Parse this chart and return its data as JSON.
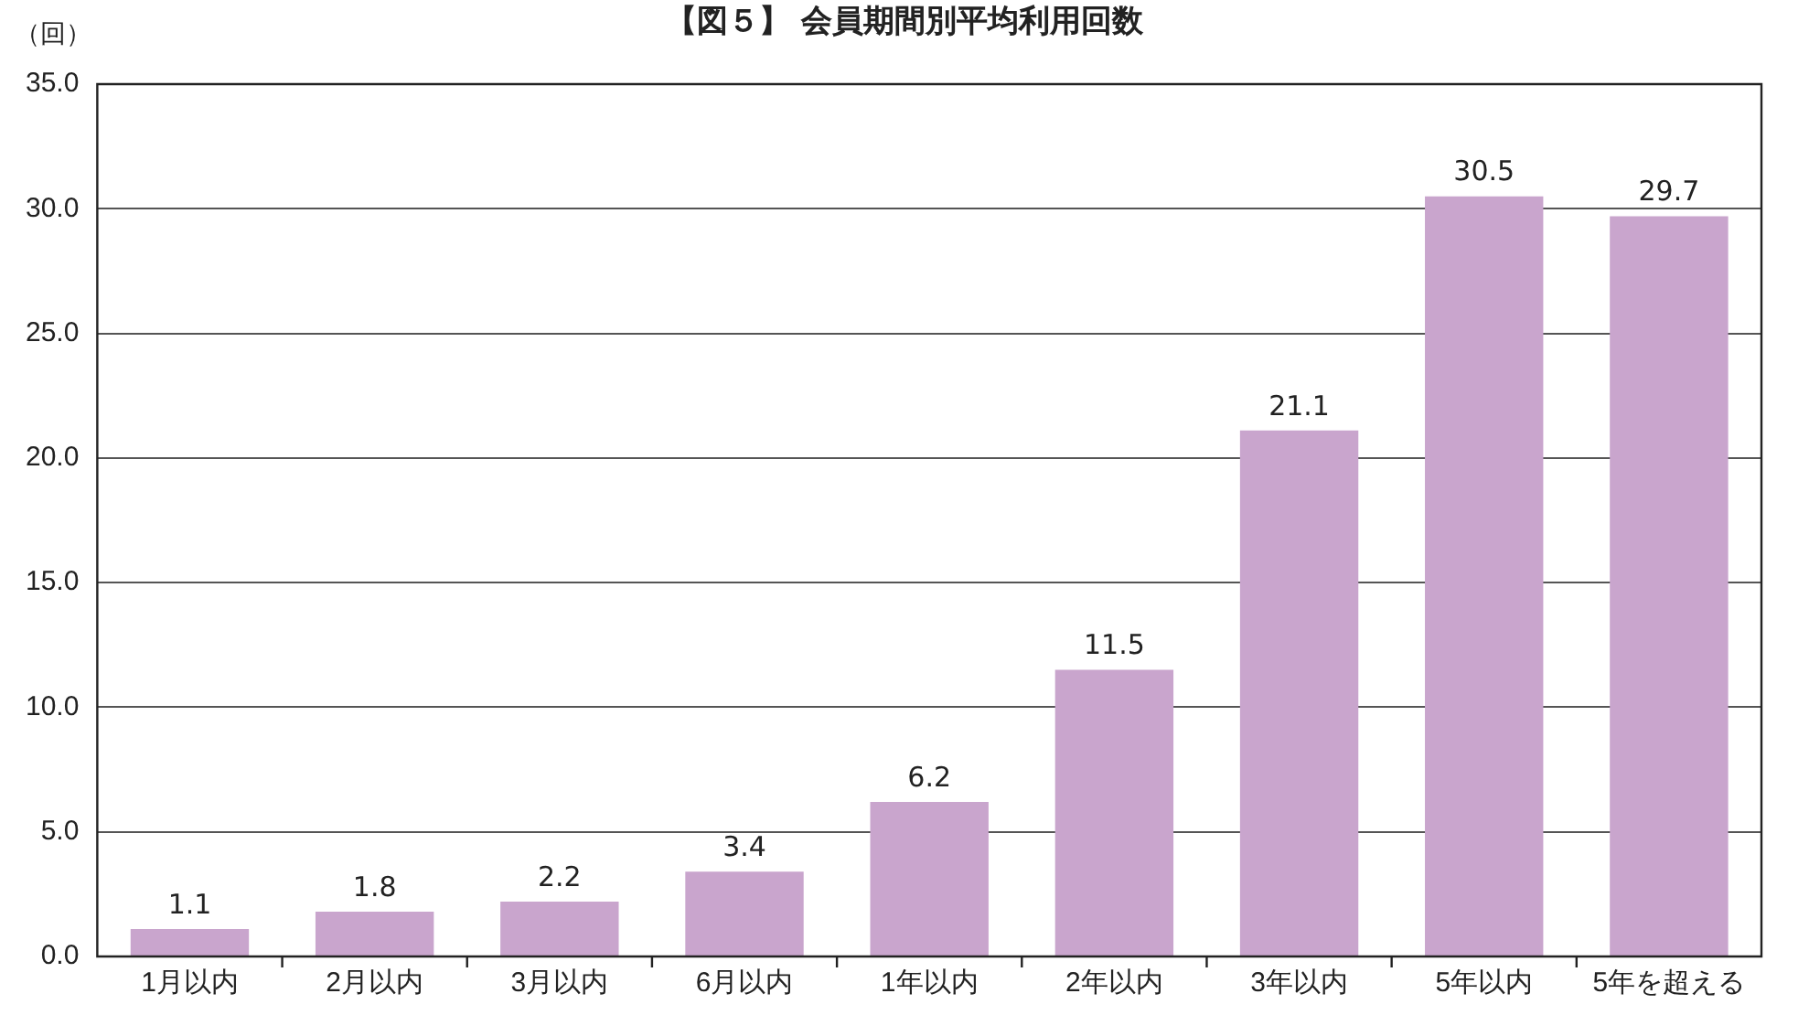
{
  "chart_data": {
    "type": "bar",
    "title": "【図５】 会員期間別平均利用回数",
    "ylabel": "（回）",
    "categories": [
      "1月以内",
      "2月以内",
      "3月以内",
      "6月以内",
      "1年以内",
      "2年以内",
      "3年以内",
      "5年以内",
      "5年を超える"
    ],
    "values": [
      1.1,
      1.8,
      2.2,
      3.4,
      6.2,
      11.5,
      21.1,
      30.5,
      29.7
    ],
    "color": "#c9a5cd",
    "ylim": [
      0,
      35
    ],
    "yticks": [
      {
        "value": 0,
        "label": "0.0"
      },
      {
        "value": 5,
        "label": "5.0"
      },
      {
        "value": 10,
        "label": "10.0"
      },
      {
        "value": 15,
        "label": "15.0"
      },
      {
        "value": 20,
        "label": "20.0"
      },
      {
        "value": 25,
        "label": "25.0"
      },
      {
        "value": 30,
        "label": "30.0"
      },
      {
        "value": 35,
        "label": "35.0"
      }
    ],
    "grid": "y",
    "data_labels": true,
    "legend": false
  }
}
